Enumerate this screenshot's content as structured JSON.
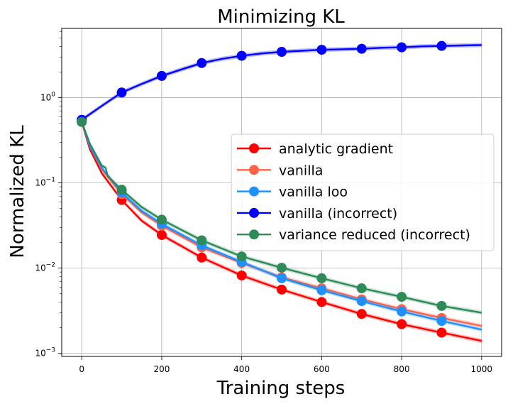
{
  "chart_data": {
    "type": "line",
    "title": "Minimizing KL",
    "xlabel": "Training steps",
    "ylabel": "Normalized KL",
    "xlim": [
      -50,
      1050
    ],
    "ylim": [
      0.00092,
      6.5
    ],
    "yscale": "log",
    "grid": true,
    "legend_position": "center-right",
    "x_ticks": [
      0,
      200,
      400,
      600,
      800,
      1000
    ],
    "y_ticks": [
      {
        "value": 0.001,
        "base": "10",
        "exp": "−3"
      },
      {
        "value": 0.01,
        "base": "10",
        "exp": "−2"
      },
      {
        "value": 0.1,
        "base": "10",
        "exp": "−1"
      },
      {
        "value": 1,
        "base": "10",
        "exp": "0"
      }
    ],
    "marker_x": [
      0,
      100,
      200,
      300,
      400,
      500,
      600,
      700,
      800,
      900
    ],
    "series": [
      {
        "name": "analytic gradient",
        "color": "#ff0000",
        "x": [
          0,
          20,
          50,
          100,
          150,
          200,
          300,
          400,
          500,
          600,
          700,
          800,
          900,
          1000
        ],
        "values": [
          0.52,
          0.25,
          0.13,
          0.063,
          0.036,
          0.0245,
          0.0133,
          0.0082,
          0.0056,
          0.004,
          0.0029,
          0.0022,
          0.00175,
          0.0014
        ]
      },
      {
        "name": "vanilla",
        "color": "#ff6347",
        "x": [
          0,
          20,
          50,
          100,
          150,
          200,
          300,
          400,
          500,
          600,
          700,
          800,
          900,
          1000
        ],
        "values": [
          0.52,
          0.27,
          0.145,
          0.074,
          0.045,
          0.0315,
          0.0175,
          0.0115,
          0.0078,
          0.0058,
          0.0043,
          0.0033,
          0.0026,
          0.0021
        ]
      },
      {
        "name": "vanilla loo",
        "color": "#1e90ff",
        "x": [
          0,
          20,
          50,
          100,
          150,
          200,
          300,
          400,
          500,
          600,
          700,
          800,
          900,
          1000
        ],
        "values": [
          0.52,
          0.27,
          0.15,
          0.077,
          0.047,
          0.033,
          0.0185,
          0.0118,
          0.0076,
          0.0055,
          0.0041,
          0.0031,
          0.0024,
          0.0019
        ]
      },
      {
        "name": "vanilla (incorrect)",
        "color": "#0000ff",
        "x": [
          0,
          50,
          100,
          150,
          200,
          250,
          300,
          350,
          400,
          450,
          500,
          550,
          600,
          650,
          700,
          750,
          800,
          850,
          900,
          950,
          1000
        ],
        "values": [
          0.55,
          0.8,
          1.15,
          1.45,
          1.8,
          2.15,
          2.55,
          2.85,
          3.1,
          3.3,
          3.45,
          3.55,
          3.65,
          3.7,
          3.75,
          3.85,
          3.9,
          4.0,
          4.05,
          4.1,
          4.15
        ]
      },
      {
        "name": "variance reduced (incorrect)",
        "color": "#2e8b57",
        "x": [
          0,
          20,
          50,
          60,
          65,
          100,
          150,
          200,
          300,
          400,
          500,
          600,
          700,
          800,
          900,
          1000
        ],
        "values": [
          0.52,
          0.29,
          0.16,
          0.15,
          0.12,
          0.083,
          0.052,
          0.037,
          0.0212,
          0.0137,
          0.0101,
          0.0076,
          0.0058,
          0.0046,
          0.0036,
          0.003
        ]
      }
    ]
  }
}
